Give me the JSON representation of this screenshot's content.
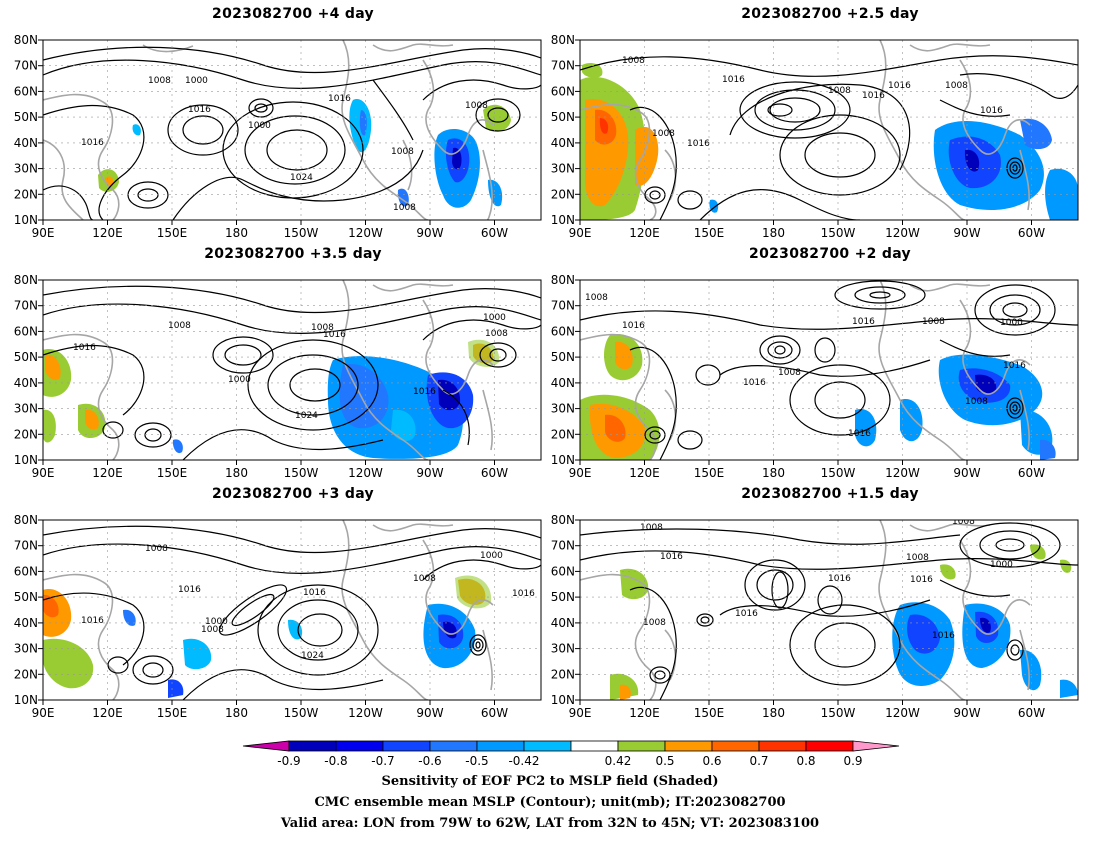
{
  "panels": [
    {
      "title": "2023082700  +4 day"
    },
    {
      "title": "2023082700  +2.5 day"
    },
    {
      "title": "2023082700  +3.5 day"
    },
    {
      "title": "2023082700  +2 day"
    },
    {
      "title": "2023082700  +3 day"
    },
    {
      "title": "2023082700  +1.5 day"
    }
  ],
  "lat_ticks": [
    "80N",
    "70N",
    "60N",
    "50N",
    "40N",
    "30N",
    "20N",
    "10N"
  ],
  "lon_ticks": [
    "90E",
    "120E",
    "150E",
    "180",
    "150W",
    "120W",
    "90W",
    "60W"
  ],
  "contour_labels": {
    "p0": [
      "1008",
      "1000",
      "1000",
      "1016",
      "1016",
      "1016",
      "1008",
      "1008",
      "1024",
      "1008"
    ],
    "p1": [
      "1008",
      "1016",
      "1008",
      "1016",
      "1016",
      "1008",
      "1016",
      "1008",
      "1016"
    ],
    "p2": [
      "1008",
      "1016",
      "1008",
      "1000",
      "1016",
      "1024",
      "1016",
      "1000",
      "1008"
    ],
    "p3": [
      "1008",
      "1016",
      "1016",
      "1008",
      "1008",
      "1000",
      "1016",
      "1016",
      "1008",
      "1016"
    ],
    "p4": [
      "1008",
      "1016",
      "1000",
      "1008",
      "1016",
      "1024",
      "1016",
      "1008",
      "1000",
      "1016"
    ],
    "p5": [
      "1008",
      "1008",
      "1016",
      "1016",
      "1016",
      "1008",
      "1008",
      "1000",
      "1016",
      "1016"
    ]
  },
  "colorbar": {
    "colors": [
      "#cc00aa",
      "#0000bb",
      "#0000ee",
      "#1144ff",
      "#2277ff",
      "#0099ff",
      "#00bbff",
      "#ffffff",
      "#99cc33",
      "#ff9900",
      "#ff6600",
      "#ff3300",
      "#ff0000",
      "#ff99cc"
    ],
    "labels": [
      "-0.9",
      "-0.8",
      "-0.7",
      "-0.6",
      "-0.5",
      "-0.42",
      "0.42",
      "0.5",
      "0.6",
      "0.7",
      "0.8",
      "0.9"
    ]
  },
  "caption": {
    "line1": "Sensitivity of EOF PC2 to MSLP field (Shaded)",
    "line2": "CMC ensemble mean MSLP (Contour); unit(mb); IT:2023082700",
    "line3": "Valid area: LON from 79W to 62W, LAT from 32N to 45N; VT: 2023083100"
  }
}
